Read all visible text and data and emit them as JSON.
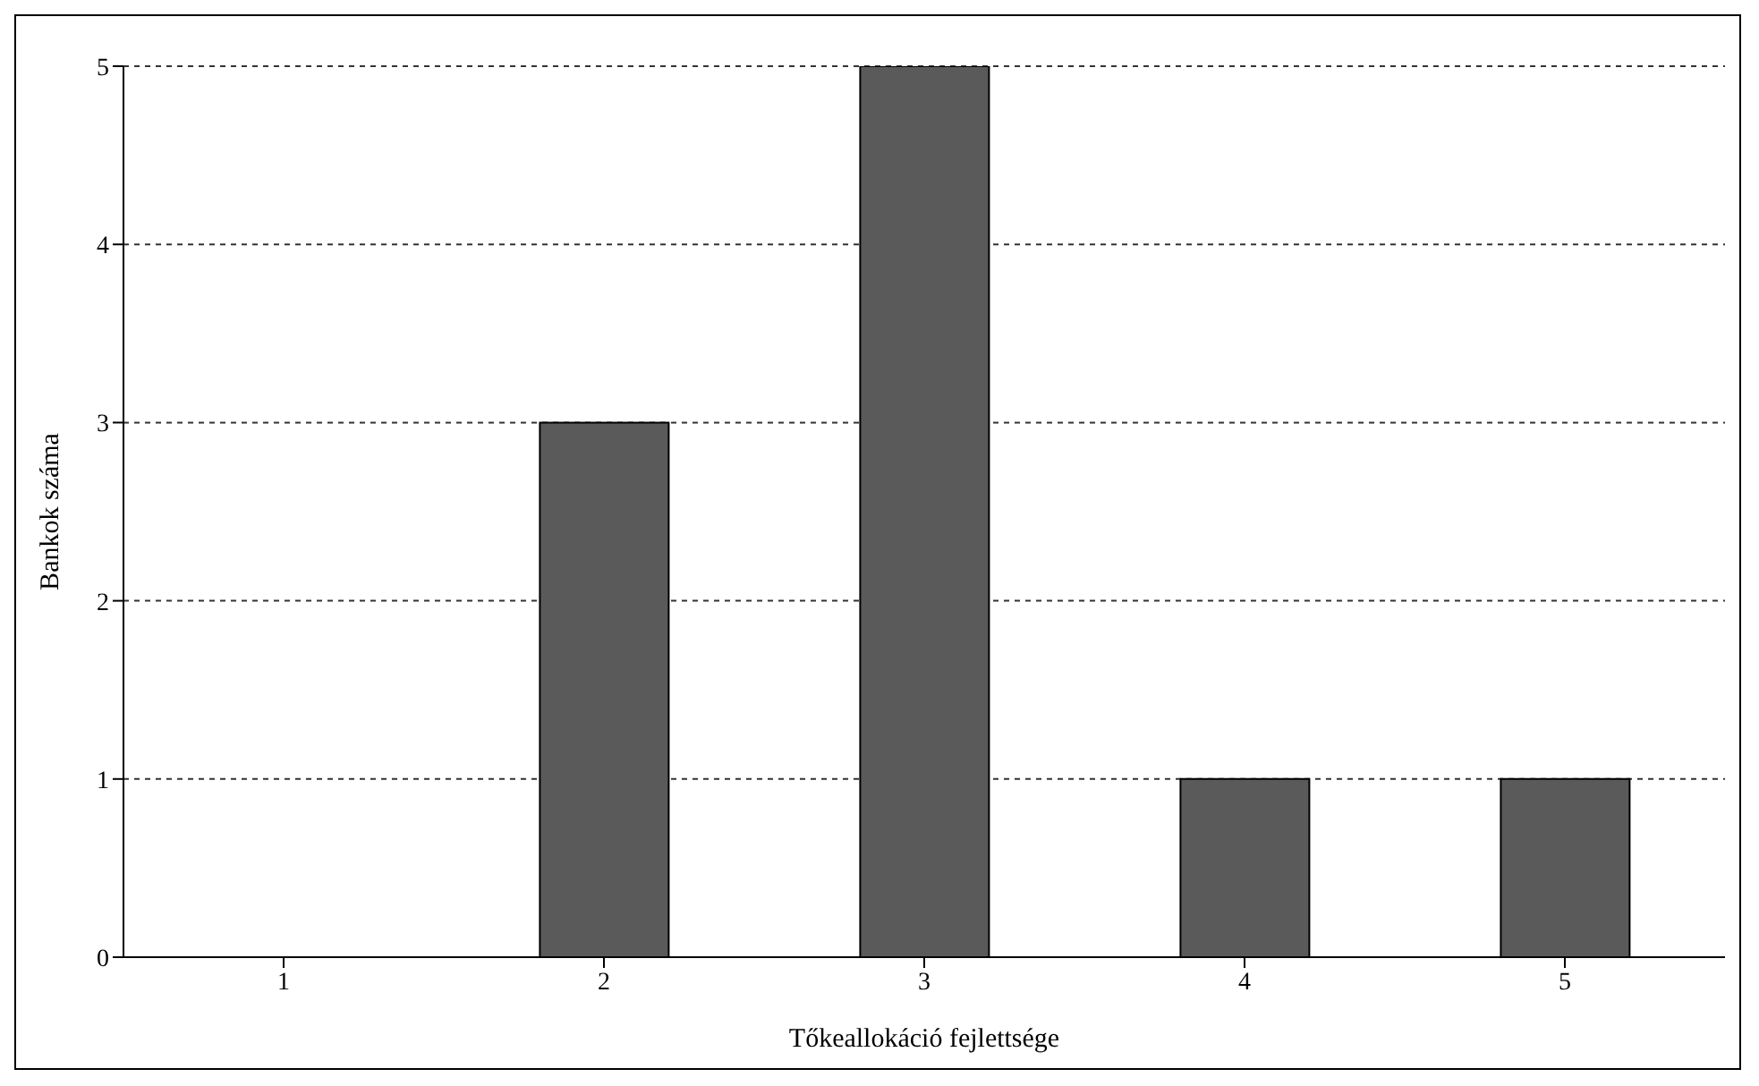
{
  "chart_data": {
    "type": "bar",
    "xlabel": "Tőkeallokáció fejlettsége",
    "ylabel": "Bankok száma",
    "categories": [
      "1",
      "2",
      "3",
      "4",
      "5"
    ],
    "values": [
      0,
      3,
      5,
      1,
      1
    ],
    "color": "#5a5a5a",
    "ylim": [
      0,
      5
    ],
    "yticks": [
      0,
      1,
      2,
      3,
      4,
      5
    ],
    "grid": "y"
  }
}
